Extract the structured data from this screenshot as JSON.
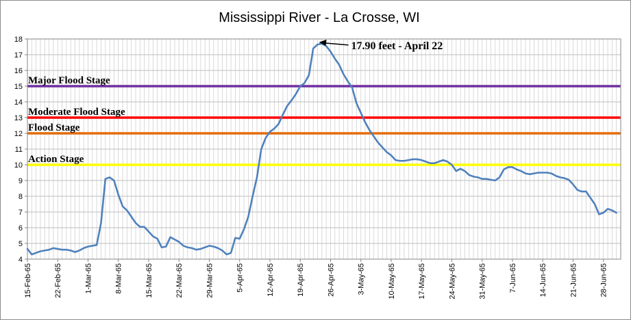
{
  "chart_data": {
    "type": "line",
    "title": "Mississippi River - La Crosse, WI",
    "xlabel": "",
    "ylabel": "",
    "ylim": [
      4,
      18
    ],
    "y_ticks": [
      "4",
      "5",
      "6",
      "7",
      "8",
      "9",
      "10",
      "11",
      "12",
      "13",
      "14",
      "15",
      "16",
      "17",
      "18"
    ],
    "x_start": "1965-02-15",
    "x_end": "1965-07-02",
    "x_ticks": [
      "15-Feb-65",
      "22-Feb-65",
      "1-Mar-65",
      "8-Mar-65",
      "15-Mar-65",
      "22-Mar-65",
      "29-Mar-65",
      "5-Apr-65",
      "12-Apr-65",
      "19-Apr-65",
      "26-Apr-65",
      "3-May-65",
      "10-May-65",
      "17-May-65",
      "24-May-65",
      "31-May-65",
      "7-Jun-65",
      "14-Jun-65",
      "21-Jun-65",
      "28-Jun-65"
    ],
    "grid": "vertical-daily-and-horizontal",
    "stages": [
      {
        "label": "Major Flood Stage",
        "value": 15,
        "color": "#7030a0"
      },
      {
        "label": "Moderate Flood Stage",
        "value": 13,
        "color": "#ff0000"
      },
      {
        "label": "Flood Stage",
        "value": 12,
        "color": "#e46c0a"
      },
      {
        "label": "Action Stage",
        "value": 10,
        "color": "#ffff00"
      }
    ],
    "series": [
      {
        "color": "#4f81bd",
        "points": [
          [
            "1965-02-15",
            4.65
          ],
          [
            "1965-02-16",
            4.3
          ],
          [
            "1965-02-17",
            4.4
          ],
          [
            "1965-02-18",
            4.5
          ],
          [
            "1965-02-19",
            4.55
          ],
          [
            "1965-02-20",
            4.6
          ],
          [
            "1965-02-21",
            4.7
          ],
          [
            "1965-02-22",
            4.65
          ],
          [
            "1965-02-23",
            4.6
          ],
          [
            "1965-02-24",
            4.6
          ],
          [
            "1965-02-25",
            4.55
          ],
          [
            "1965-02-26",
            4.45
          ],
          [
            "1965-02-27",
            4.55
          ],
          [
            "1965-02-28",
            4.7
          ],
          [
            "1965-03-01",
            4.8
          ],
          [
            "1965-03-02",
            4.85
          ],
          [
            "1965-03-03",
            4.9
          ],
          [
            "1965-03-04",
            6.3
          ],
          [
            "1965-03-05",
            9.1
          ],
          [
            "1965-03-06",
            9.2
          ],
          [
            "1965-03-07",
            9.0
          ],
          [
            "1965-03-08",
            8.1
          ],
          [
            "1965-03-09",
            7.35
          ],
          [
            "1965-03-10",
            7.1
          ],
          [
            "1965-03-11",
            6.7
          ],
          [
            "1965-03-12",
            6.3
          ],
          [
            "1965-03-13",
            6.05
          ],
          [
            "1965-03-14",
            6.05
          ],
          [
            "1965-03-15",
            5.75
          ],
          [
            "1965-03-16",
            5.45
          ],
          [
            "1965-03-17",
            5.3
          ],
          [
            "1965-03-18",
            4.75
          ],
          [
            "1965-03-19",
            4.8
          ],
          [
            "1965-03-20",
            5.4
          ],
          [
            "1965-03-21",
            5.25
          ],
          [
            "1965-03-22",
            5.1
          ],
          [
            "1965-03-23",
            4.85
          ],
          [
            "1965-03-24",
            4.75
          ],
          [
            "1965-03-25",
            4.7
          ],
          [
            "1965-03-26",
            4.6
          ],
          [
            "1965-03-27",
            4.65
          ],
          [
            "1965-03-28",
            4.75
          ],
          [
            "1965-03-29",
            4.85
          ],
          [
            "1965-03-30",
            4.8
          ],
          [
            "1965-03-31",
            4.7
          ],
          [
            "1965-04-01",
            4.55
          ],
          [
            "1965-04-02",
            4.3
          ],
          [
            "1965-04-03",
            4.4
          ],
          [
            "1965-04-04",
            5.35
          ],
          [
            "1965-04-05",
            5.3
          ],
          [
            "1965-04-06",
            5.9
          ],
          [
            "1965-04-07",
            6.7
          ],
          [
            "1965-04-08",
            8.0
          ],
          [
            "1965-04-09",
            9.2
          ],
          [
            "1965-04-10",
            11.0
          ],
          [
            "1965-04-11",
            11.7
          ],
          [
            "1965-04-12",
            12.1
          ],
          [
            "1965-04-13",
            12.3
          ],
          [
            "1965-04-14",
            12.6
          ],
          [
            "1965-04-15",
            13.2
          ],
          [
            "1965-04-16",
            13.75
          ],
          [
            "1965-04-17",
            14.1
          ],
          [
            "1965-04-18",
            14.5
          ],
          [
            "1965-04-19",
            15.0
          ],
          [
            "1965-04-20",
            15.2
          ],
          [
            "1965-04-21",
            15.7
          ],
          [
            "1965-04-22",
            17.4
          ],
          [
            "1965-04-23",
            17.65
          ],
          [
            "1965-04-24",
            17.7
          ],
          [
            "1965-04-25",
            17.55
          ],
          [
            "1965-04-26",
            17.2
          ],
          [
            "1965-04-27",
            16.75
          ],
          [
            "1965-04-28",
            16.35
          ],
          [
            "1965-04-29",
            15.75
          ],
          [
            "1965-04-30",
            15.3
          ],
          [
            "1965-05-01",
            14.9
          ],
          [
            "1965-05-02",
            13.9
          ],
          [
            "1965-05-03",
            13.3
          ],
          [
            "1965-05-04",
            12.7
          ],
          [
            "1965-05-05",
            12.2
          ],
          [
            "1965-05-06",
            11.8
          ],
          [
            "1965-05-07",
            11.4
          ],
          [
            "1965-05-08",
            11.1
          ],
          [
            "1965-05-09",
            10.8
          ],
          [
            "1965-05-10",
            10.6
          ],
          [
            "1965-05-11",
            10.3
          ],
          [
            "1965-05-12",
            10.25
          ],
          [
            "1965-05-13",
            10.25
          ],
          [
            "1965-05-14",
            10.3
          ],
          [
            "1965-05-15",
            10.35
          ],
          [
            "1965-05-16",
            10.35
          ],
          [
            "1965-05-17",
            10.3
          ],
          [
            "1965-05-18",
            10.2
          ],
          [
            "1965-05-19",
            10.1
          ],
          [
            "1965-05-20",
            10.1
          ],
          [
            "1965-05-21",
            10.2
          ],
          [
            "1965-05-22",
            10.3
          ],
          [
            "1965-05-23",
            10.2
          ],
          [
            "1965-05-24",
            10.0
          ],
          [
            "1965-05-25",
            9.6
          ],
          [
            "1965-05-26",
            9.75
          ],
          [
            "1965-05-27",
            9.6
          ],
          [
            "1965-05-28",
            9.35
          ],
          [
            "1965-05-29",
            9.25
          ],
          [
            "1965-05-30",
            9.2
          ],
          [
            "1965-05-31",
            9.1
          ],
          [
            "1965-06-01",
            9.1
          ],
          [
            "1965-06-02",
            9.05
          ],
          [
            "1965-06-03",
            9.0
          ],
          [
            "1965-06-04",
            9.2
          ],
          [
            "1965-06-05",
            9.7
          ],
          [
            "1965-06-06",
            9.85
          ],
          [
            "1965-06-07",
            9.85
          ],
          [
            "1965-06-08",
            9.7
          ],
          [
            "1965-06-09",
            9.6
          ],
          [
            "1965-06-10",
            9.45
          ],
          [
            "1965-06-11",
            9.4
          ],
          [
            "1965-06-12",
            9.45
          ],
          [
            "1965-06-13",
            9.5
          ],
          [
            "1965-06-14",
            9.5
          ],
          [
            "1965-06-15",
            9.5
          ],
          [
            "1965-06-16",
            9.45
          ],
          [
            "1965-06-17",
            9.3
          ],
          [
            "1965-06-18",
            9.2
          ],
          [
            "1965-06-19",
            9.15
          ],
          [
            "1965-06-20",
            9.05
          ],
          [
            "1965-06-21",
            8.75
          ],
          [
            "1965-06-22",
            8.4
          ],
          [
            "1965-06-23",
            8.3
          ],
          [
            "1965-06-24",
            8.3
          ],
          [
            "1965-06-25",
            7.9
          ],
          [
            "1965-06-26",
            7.5
          ],
          [
            "1965-06-27",
            6.85
          ],
          [
            "1965-06-28",
            6.95
          ],
          [
            "1965-06-29",
            7.2
          ],
          [
            "1965-06-30",
            7.1
          ],
          [
            "1965-07-01",
            6.95
          ]
        ]
      }
    ],
    "annotation": {
      "text": "17.90 feet - April 22",
      "x": "1965-04-23",
      "y": 17.7
    }
  }
}
